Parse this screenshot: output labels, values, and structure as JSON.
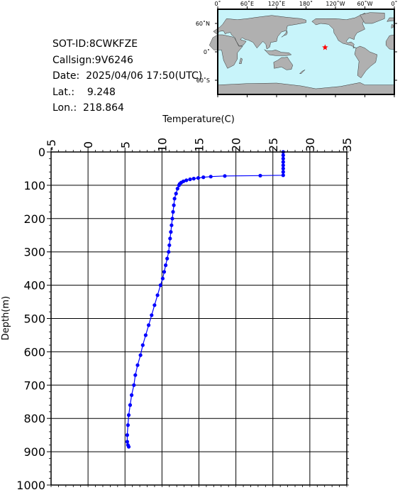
{
  "info": {
    "sot_id": "SOT-ID:8CWKFZE",
    "callsign": "Callsign:9V6246",
    "date": "Date:  2025/04/06 17:50(UTC)",
    "lat": "Lat.:    9.248",
    "lon": "Lon.:  218.864"
  },
  "map": {
    "lon_labels": [
      "0˚",
      "60˚E",
      "120˚E",
      "180˚",
      "120˚W",
      "60˚W",
      "0˚"
    ],
    "lat_labels": [
      "60˚N",
      "0˚",
      "60˚S"
    ],
    "ocean_color": "#c8f4fa",
    "land_color": "#b0b0b0",
    "marker": {
      "lon": 218.864,
      "lat": 9.248,
      "color": "#ff0000",
      "symbol": "star"
    }
  },
  "chart_data": {
    "type": "line",
    "title": "",
    "xlabel": "Temperature(C)",
    "ylabel": "Depth(m)",
    "xlim": [
      -5,
      35
    ],
    "ylim": [
      1000,
      0
    ],
    "x_ticks": [
      -5,
      0,
      5,
      10,
      15,
      20,
      25,
      30,
      35
    ],
    "y_ticks": [
      0,
      100,
      200,
      300,
      400,
      500,
      600,
      700,
      800,
      900,
      1000
    ],
    "grid": true,
    "series_color": "#0000ff",
    "series": [
      {
        "x": [
          26.4,
          26.4,
          26.4,
          26.4,
          26.4,
          26.4,
          26.4,
          26.4,
          23.3,
          18.5,
          16.6,
          15.6,
          14.9,
          14.3,
          13.8,
          13.3,
          12.9,
          12.6,
          12.4,
          12.3,
          12.1,
          11.9,
          11.7,
          11.6,
          11.5,
          11.4,
          11.3,
          11.2,
          11.1,
          11.0,
          10.9,
          10.7,
          10.5,
          10.3,
          10.1,
          9.8,
          9.4,
          9.0,
          8.6,
          8.2,
          7.8,
          7.4,
          7.1,
          6.7,
          6.4,
          6.2,
          5.9,
          5.7,
          5.5,
          5.4,
          5.3,
          5.3,
          5.4,
          5.5
        ],
        "y": [
          0,
          10,
          20,
          30,
          40,
          50,
          60,
          70,
          71,
          72,
          74,
          76,
          78,
          80,
          82,
          85,
          88,
          92,
          96,
          100,
          110,
          125,
          140,
          160,
          180,
          200,
          220,
          240,
          260,
          280,
          300,
          320,
          340,
          360,
          380,
          400,
          430,
          460,
          490,
          520,
          550,
          580,
          610,
          640,
          670,
          700,
          730,
          760,
          790,
          820,
          850,
          870,
          880,
          885
        ]
      }
    ]
  }
}
